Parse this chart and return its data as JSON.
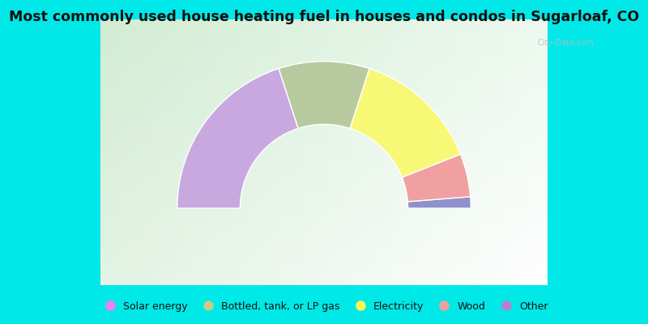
{
  "title": "Most commonly used house heating fuel in houses and condos in Sugarloaf, CO",
  "title_fontsize": 12.5,
  "background_color": "#00e8e8",
  "chart_bg_color": "#ddeedd",
  "ordered_segments": [
    {
      "label": "Solar energy",
      "value": 2.5,
      "color": "#9090cc"
    },
    {
      "label": "Wood",
      "value": 9.5,
      "color": "#f0a0a0"
    },
    {
      "label": "Electricity",
      "value": 28.0,
      "color": "#f8f877"
    },
    {
      "label": "Bottled, tank, or LP gas",
      "value": 20.0,
      "color": "#b8c9a0"
    },
    {
      "label": "Other",
      "value": 40.0,
      "color": "#c9a8df"
    }
  ],
  "outer_r": 1.05,
  "inner_r": 0.6,
  "legend_labels": [
    "Solar energy",
    "Bottled, tank, or LP gas",
    "Electricity",
    "Wood",
    "Other"
  ],
  "legend_colors": [
    "#ee80ee",
    "#c8cc88",
    "#f8f855",
    "#f0a0a0",
    "#b880cc"
  ]
}
